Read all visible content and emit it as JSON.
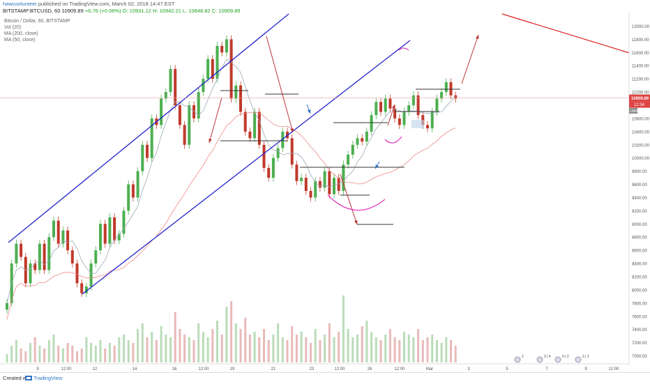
{
  "header": {
    "user": "hawcoolunteer",
    "published": "published on TradingView.com, March 02, 2018 14:47 EST",
    "symbol": "BITSTAMP:BTCUSD, 60",
    "quote_prefix": "10909.89",
    "quote_change": "+6.76 (+0.06%)",
    "quote_ohlc": "O: 10931.12 H: 10942.21 L: 10848.82 C: 10909.89"
  },
  "legend": [
    "Bitcoin / Dollar, 60, BITSTAMP",
    "Vol (20)",
    "MA (200, close)",
    "MA (50, close)"
  ],
  "footer": {
    "created_with": "Created with",
    "brand": "TradingView"
  },
  "chart_data": {
    "type": "candlestick",
    "symbol": "BITSTAMP:BTCUSD",
    "interval": "60",
    "ylim": [
      6900,
      12100
    ],
    "yticks": [
      7000,
      7200,
      7400,
      7600,
      7800,
      8000,
      8200,
      8400,
      8600,
      8800,
      9000,
      9200,
      9400,
      9600,
      9800,
      10000,
      10200,
      10400,
      10600,
      10800,
      11000,
      11200,
      11400,
      11600,
      11800,
      12000
    ],
    "x_ticks": [
      "9",
      "12:00",
      "12",
      "14",
      "16",
      "12:00",
      "19",
      "21",
      "23",
      "12:00",
      "26",
      "12:00",
      "Mar",
      "3",
      "5",
      "7",
      "9",
      "12:00"
    ],
    "price_labels": {
      "last": "10909.89",
      "countdown": "12:34",
      "ma": "10843"
    },
    "price_path": [
      [
        0,
        7800
      ],
      [
        1,
        8400
      ],
      [
        2,
        8700
      ],
      [
        3,
        8500
      ],
      [
        4,
        8100
      ],
      [
        5,
        8400
      ],
      [
        6,
        8300
      ],
      [
        7,
        8700
      ],
      [
        8,
        8300
      ],
      [
        9,
        8800
      ],
      [
        10,
        9050
      ],
      [
        11,
        8700
      ],
      [
        12,
        8900
      ],
      [
        13,
        8600
      ],
      [
        14,
        8400
      ],
      [
        15,
        8100
      ],
      [
        16,
        7950
      ],
      [
        17,
        8050
      ],
      [
        18,
        8400
      ],
      [
        19,
        8600
      ],
      [
        20,
        9000
      ],
      [
        21,
        8700
      ],
      [
        22,
        9100
      ],
      [
        23,
        8750
      ],
      [
        24,
        8850
      ],
      [
        25,
        9200
      ],
      [
        26,
        9600
      ],
      [
        27,
        9400
      ],
      [
        28,
        9800
      ],
      [
        29,
        10200
      ],
      [
        30,
        10000
      ],
      [
        31,
        10600
      ],
      [
        32,
        10500
      ],
      [
        33,
        10900
      ],
      [
        34,
        11000
      ],
      [
        35,
        11350
      ],
      [
        36,
        10800
      ],
      [
        37,
        10500
      ],
      [
        38,
        10200
      ],
      [
        39,
        10800
      ],
      [
        40,
        10600
      ],
      [
        41,
        11000
      ],
      [
        42,
        11200
      ],
      [
        43,
        11500
      ],
      [
        44,
        11200
      ],
      [
        45,
        11700
      ],
      [
        46,
        11600
      ],
      [
        47,
        11800
      ],
      [
        48,
        10900
      ],
      [
        49,
        11100
      ],
      [
        50,
        10700
      ],
      [
        51,
        10400
      ],
      [
        52,
        10300
      ],
      [
        53,
        10700
      ],
      [
        54,
        10200
      ],
      [
        55,
        9850
      ],
      [
        56,
        9700
      ],
      [
        57,
        10000
      ],
      [
        58,
        10150
      ],
      [
        59,
        10400
      ],
      [
        60,
        10300
      ],
      [
        61,
        9900
      ],
      [
        62,
        9650
      ],
      [
        63,
        9700
      ],
      [
        64,
        9500
      ],
      [
        65,
        9400
      ],
      [
        66,
        9650
      ],
      [
        67,
        9550
      ],
      [
        68,
        9800
      ],
      [
        69,
        9450
      ],
      [
        70,
        9700
      ],
      [
        71,
        9500
      ],
      [
        72,
        9900
      ],
      [
        73,
        10050
      ],
      [
        74,
        10200
      ],
      [
        75,
        10300
      ],
      [
        76,
        10250
      ],
      [
        77,
        10400
      ],
      [
        78,
        10650
      ],
      [
        79,
        10850
      ],
      [
        80,
        10700
      ],
      [
        81,
        10900
      ],
      [
        82,
        10750
      ],
      [
        83,
        10600
      ],
      [
        84,
        10500
      ],
      [
        85,
        10700
      ],
      [
        86,
        10800
      ],
      [
        87,
        10950
      ],
      [
        88,
        10650
      ],
      [
        89,
        10500
      ],
      [
        90,
        10450
      ],
      [
        91,
        10700
      ],
      [
        92,
        10900
      ],
      [
        93,
        11000
      ],
      [
        94,
        11150
      ],
      [
        95,
        10950
      ],
      [
        96,
        10900
      ]
    ],
    "volume": [
      3,
      6,
      8,
      5,
      4,
      7,
      9,
      6,
      5,
      8,
      10,
      6,
      5,
      7,
      6,
      4,
      5,
      9,
      7,
      6,
      8,
      5,
      7,
      6,
      9,
      10,
      8,
      7,
      12,
      14,
      9,
      11,
      8,
      13,
      10,
      9,
      18,
      12,
      10,
      9,
      8,
      14,
      11,
      9,
      12,
      15,
      10,
      20,
      22,
      14,
      12,
      16,
      10,
      11,
      9,
      12,
      8,
      10,
      14,
      9,
      8,
      13,
      10,
      11,
      9,
      7,
      12,
      8,
      10,
      14,
      9,
      11,
      24,
      12,
      9,
      10,
      13,
      15,
      11,
      9,
      8,
      10,
      12,
      9,
      8,
      11,
      10,
      9,
      12,
      8,
      9,
      10,
      8,
      7,
      9,
      8,
      6
    ]
  },
  "events": [
    {
      "label": "2",
      "x": 742
    },
    {
      "label": "2 | 4",
      "x": 774
    },
    {
      "label": "5 | 2",
      "x": 800
    },
    {
      "label": "2 | 2",
      "x": 829
    }
  ]
}
